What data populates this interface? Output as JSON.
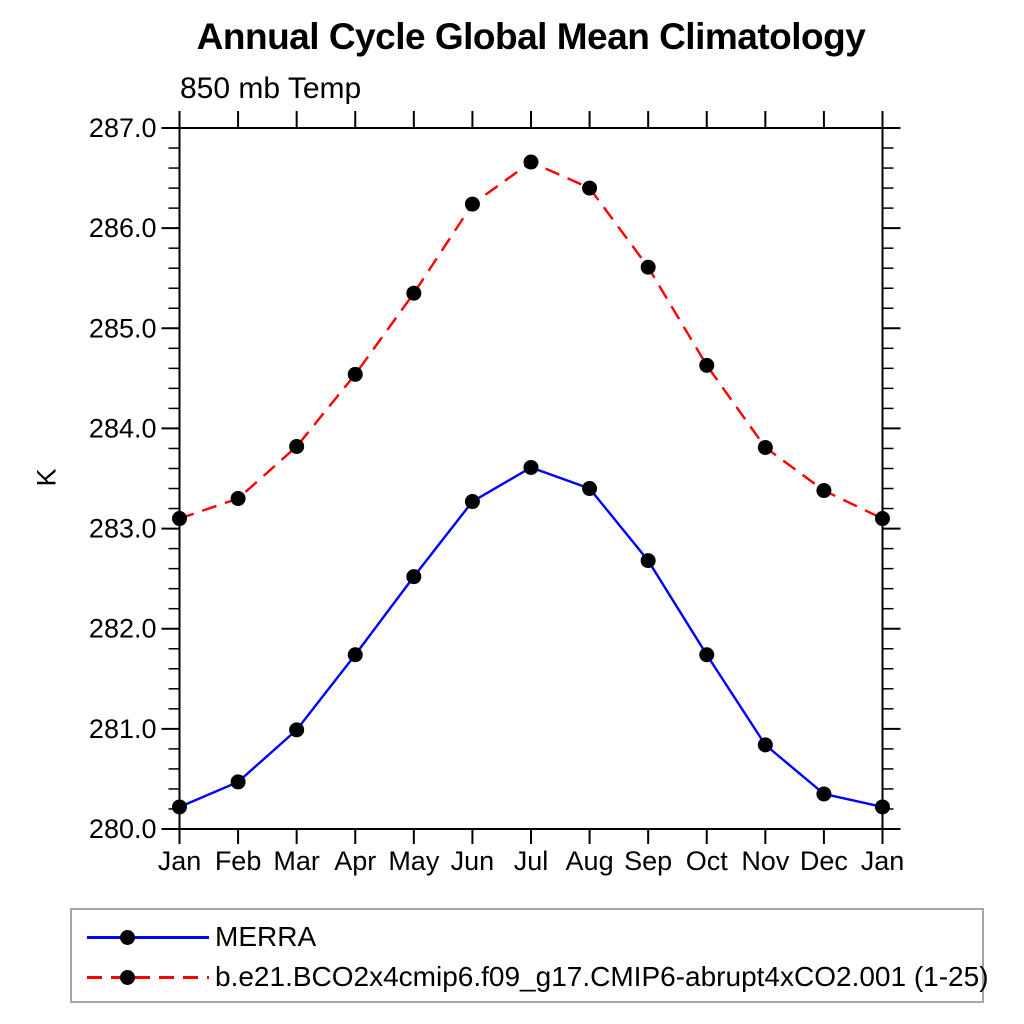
{
  "page": {
    "background": "#ffffff"
  },
  "chart": {
    "title": "Annual Cycle Global Mean Climatology",
    "subtitle": "850 mb Temp",
    "ylabel": "K",
    "axis_color": "#000000",
    "marker_color": "#000000",
    "legend": {
      "border_color": "#a6a6a6",
      "entries": [
        {
          "label": "MERRA",
          "color": "#0000ff",
          "style": "solid"
        },
        {
          "label": "b.e21.BCO2x4cmip6.f09_g17.CMIP6-abrupt4xCO2.001 (1-25)",
          "color": "#ff0000",
          "style": "dashed"
        }
      ]
    }
  },
  "chart_data": {
    "type": "line",
    "title": "Annual Cycle Global Mean Climatology",
    "subtitle": "850 mb Temp",
    "xlabel": "",
    "ylabel": "K",
    "x": [
      "Jan",
      "Feb",
      "Mar",
      "Apr",
      "May",
      "Jun",
      "Jul",
      "Aug",
      "Sep",
      "Oct",
      "Nov",
      "Dec",
      "Jan"
    ],
    "series": [
      {
        "name": "MERRA",
        "color": "#0000ff",
        "line_style": "solid",
        "marker": "filled-circle",
        "values": [
          280.22,
          280.47,
          280.99,
          281.74,
          282.52,
          283.27,
          283.61,
          283.4,
          282.68,
          281.74,
          280.84,
          280.35,
          280.22
        ]
      },
      {
        "name": "b.e21.BCO2x4cmip6.f09_g17.CMIP6-abrupt4xCO2.001 (1-25)",
        "color": "#ff0000",
        "line_style": "dashed",
        "marker": "filled-circle",
        "values": [
          283.1,
          283.3,
          283.82,
          284.54,
          285.35,
          286.24,
          286.66,
          286.4,
          285.61,
          284.63,
          283.81,
          283.38,
          283.1
        ]
      }
    ],
    "ylim": [
      280.0,
      287.0
    ],
    "ytick_major": 1.0,
    "ytick_minor": 0.2,
    "ytick_labels": [
      "280.0",
      "281.0",
      "282.0",
      "283.0",
      "284.0",
      "285.0",
      "286.0",
      "287.0"
    ],
    "grid": false,
    "frame": "box-with-outward-ticks",
    "legend_position": "below-left-box"
  }
}
